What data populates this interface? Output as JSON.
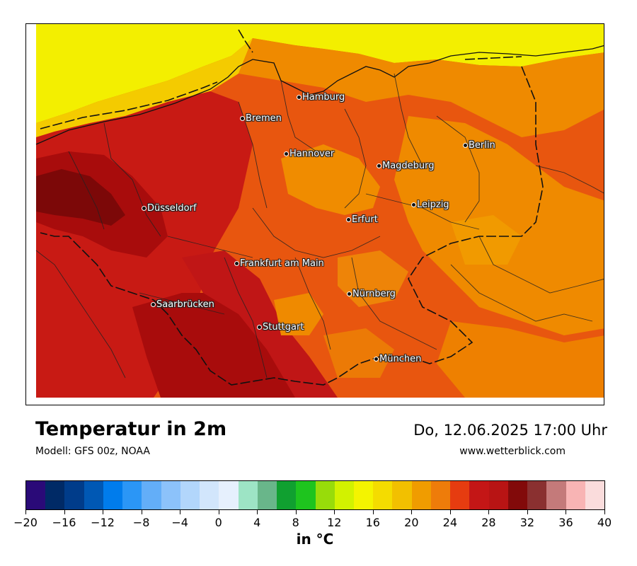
{
  "map": {
    "title": "Temperatur in 2m",
    "model": "Modell: GFS 00z, NOAA",
    "datetime": "Do, 12.06.2025 17:00 Uhr",
    "website": "www.wetterblick.com",
    "cities": [
      {
        "name": "Hamburg"
      },
      {
        "name": "Bremen"
      },
      {
        "name": "Berlin"
      },
      {
        "name": "Hannover"
      },
      {
        "name": "Magdeburg"
      },
      {
        "name": "Düsseldorf"
      },
      {
        "name": "Leipzig"
      },
      {
        "name": "Erfurt"
      },
      {
        "name": "Frankfurt am Main"
      },
      {
        "name": "Nürnberg"
      },
      {
        "name": "Saarbrücken"
      },
      {
        "name": "Stuttgart"
      },
      {
        "name": "München"
      }
    ]
  },
  "legend": {
    "unit": "in °C",
    "ticks": [
      "−20",
      "−16",
      "−12",
      "−8",
      "−4",
      "0",
      "4",
      "8",
      "12",
      "16",
      "20",
      "24",
      "28",
      "32",
      "36",
      "40"
    ],
    "range": [
      -20,
      40
    ],
    "step": 2,
    "colors": [
      "#2a0a78",
      "#002a66",
      "#003c8a",
      "#0058b4",
      "#007cec",
      "#2b96f6",
      "#63aef8",
      "#8cc2fa",
      "#b2d6fb",
      "#d2e6fc",
      "#e6f0fd",
      "#9de4c5",
      "#69b68a",
      "#10a030",
      "#1ec41e",
      "#98dc0a",
      "#d2f200",
      "#f4f400",
      "#f4dc00",
      "#f2c000",
      "#f09c00",
      "#ee7c0a",
      "#e63c10",
      "#c41616",
      "#b81414",
      "#820a0a",
      "#8a3030",
      "#c47a7a",
      "#f8b4b4",
      "#fadcdc"
    ]
  }
}
